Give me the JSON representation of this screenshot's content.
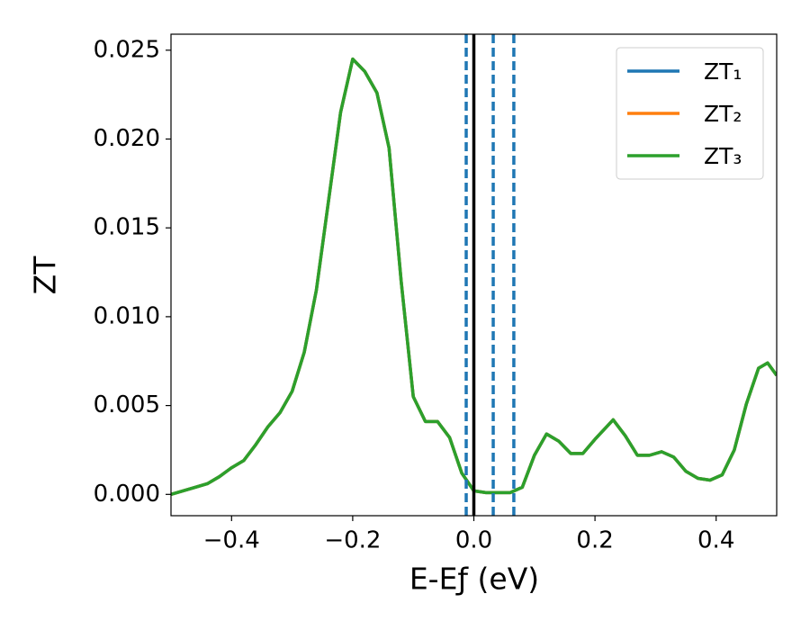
{
  "chart_data": {
    "type": "line",
    "x_label": "E-Eƒ (eV)",
    "y_label": "ZT",
    "x": [
      -0.5,
      -0.46,
      -0.44,
      -0.42,
      -0.4,
      -0.38,
      -0.36,
      -0.34,
      -0.32,
      -0.3,
      -0.28,
      -0.26,
      -0.24,
      -0.22,
      -0.2,
      -0.18,
      -0.16,
      -0.14,
      -0.12,
      -0.1,
      -0.08,
      -0.06,
      -0.04,
      -0.02,
      0.0,
      0.02,
      0.04,
      0.06,
      0.08,
      0.1,
      0.12,
      0.14,
      0.16,
      0.18,
      0.2,
      0.23,
      0.25,
      0.27,
      0.29,
      0.31,
      0.33,
      0.35,
      0.37,
      0.39,
      0.41,
      0.43,
      0.45,
      0.47,
      0.485,
      0.5
    ],
    "series": [
      {
        "name": "ZT₁",
        "color": "#1f77b4",
        "values": [
          0,
          0.0004,
          0.0006,
          0.001,
          0.0015,
          0.0019,
          0.0028,
          0.0038,
          0.0046,
          0.0058,
          0.008,
          0.0115,
          0.0165,
          0.0215,
          0.0245,
          0.0238,
          0.0226,
          0.0195,
          0.012,
          0.0055,
          0.0041,
          0.0041,
          0.0032,
          0.0012,
          0.0002,
          0.0001,
          0.0001,
          0.0001,
          0.0004,
          0.0022,
          0.0034,
          0.003,
          0.0023,
          0.0023,
          0.0031,
          0.0042,
          0.0033,
          0.0022,
          0.0022,
          0.0024,
          0.0021,
          0.0013,
          0.0009,
          0.0008,
          0.0011,
          0.0025,
          0.0051,
          0.0071,
          0.0074,
          0.0067
        ]
      },
      {
        "name": "ZT₂",
        "color": "#ff7f0e",
        "values": [
          0,
          0.0004,
          0.0006,
          0.001,
          0.0015,
          0.0019,
          0.0028,
          0.0038,
          0.0046,
          0.0058,
          0.008,
          0.0115,
          0.0165,
          0.0215,
          0.0245,
          0.0238,
          0.0226,
          0.0195,
          0.012,
          0.0055,
          0.0041,
          0.0041,
          0.0032,
          0.0012,
          0.0002,
          0.0001,
          0.0001,
          0.0001,
          0.0004,
          0.0022,
          0.0034,
          0.003,
          0.0023,
          0.0023,
          0.0031,
          0.0042,
          0.0033,
          0.0022,
          0.0022,
          0.0024,
          0.0021,
          0.0013,
          0.0009,
          0.0008,
          0.0011,
          0.0025,
          0.0051,
          0.0071,
          0.0074,
          0.0067
        ]
      },
      {
        "name": "ZT₃",
        "color": "#2ca02c",
        "values": [
          0,
          0.0004,
          0.0006,
          0.001,
          0.0015,
          0.0019,
          0.0028,
          0.0038,
          0.0046,
          0.0058,
          0.008,
          0.0115,
          0.0165,
          0.0215,
          0.0245,
          0.0238,
          0.0226,
          0.0195,
          0.012,
          0.0055,
          0.0041,
          0.0041,
          0.0032,
          0.0012,
          0.0002,
          0.0001,
          0.0001,
          0.0001,
          0.0004,
          0.0022,
          0.0034,
          0.003,
          0.0023,
          0.0023,
          0.0031,
          0.0042,
          0.0033,
          0.0022,
          0.0022,
          0.0024,
          0.0021,
          0.0013,
          0.0009,
          0.0008,
          0.0011,
          0.0025,
          0.0051,
          0.0071,
          0.0074,
          0.0067
        ]
      }
    ],
    "vlines": [
      {
        "x": 0.0,
        "color": "#000000",
        "style": "solid"
      },
      {
        "x": -0.0126,
        "color": "#1f77b4",
        "style": "dashed"
      },
      {
        "x": 0.032,
        "color": "#1f77b4",
        "style": "dashed"
      },
      {
        "x": 0.066,
        "color": "#1f77b4",
        "style": "dashed"
      }
    ],
    "xlim": [
      -0.5,
      0.5
    ],
    "xticks": [
      {
        "value": -0.4,
        "label": "−0.4"
      },
      {
        "value": -0.2,
        "label": "−0.2"
      },
      {
        "value": 0.0,
        "label": "0.0"
      },
      {
        "value": 0.2,
        "label": "0.2"
      },
      {
        "value": 0.4,
        "label": "0.4"
      }
    ],
    "ylim": [
      -0.0012,
      0.0259
    ],
    "yticks": [
      {
        "value": 0.0,
        "label": "0.000"
      },
      {
        "value": 0.005,
        "label": "0.005"
      },
      {
        "value": 0.01,
        "label": "0.010"
      },
      {
        "value": 0.015,
        "label": "0.015"
      },
      {
        "value": 0.02,
        "label": "0.020"
      },
      {
        "value": 0.025,
        "label": "0.025"
      }
    ],
    "legend": "upper right",
    "grid": false
  }
}
